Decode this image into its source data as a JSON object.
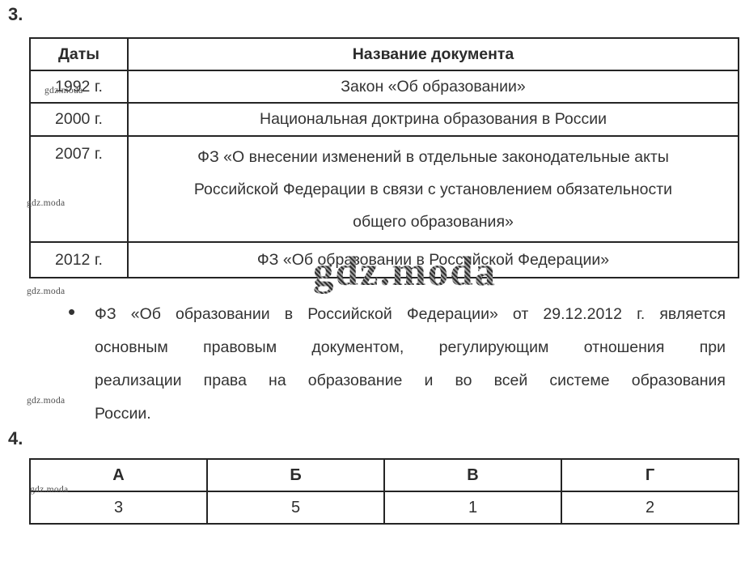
{
  "sections": {
    "third": "3.",
    "fourth": "4."
  },
  "doc_table": {
    "headers": [
      "Даты",
      "Название документа"
    ],
    "rows": [
      {
        "date": "1992 г.",
        "name": "Закон «Об образовании»"
      },
      {
        "date": "2000 г.",
        "name": "Национальная доктрина образования в России"
      },
      {
        "date": "2007 г.",
        "name_lines": [
          "ФЗ «О внесении изменений в отдельные законодательные акты",
          "Российской Федерации в связи с установлением обязательности",
          "общего образования»"
        ]
      },
      {
        "date": "2012 г.",
        "name": "ФЗ «Об образовании в Российской Федерации»"
      }
    ]
  },
  "note": {
    "bullet": "•",
    "lines": [
      "ФЗ «Об образовании в Российской Федерации» от 29.12.2012 г. является",
      "основным правовым документом, регулирующим отношения при",
      "реализации права на образование и во всей системе образования",
      "России."
    ]
  },
  "answers_table": {
    "headers": [
      "А",
      "Б",
      "В",
      "Г"
    ],
    "values": [
      "3",
      "5",
      "1",
      "2"
    ]
  },
  "watermark": {
    "large": "gdz.moda",
    "small": "gdz.moda"
  },
  "colors": {
    "text": "#333333",
    "border": "#242424",
    "watermark": "#4a4a4a",
    "background": "#ffffff"
  }
}
